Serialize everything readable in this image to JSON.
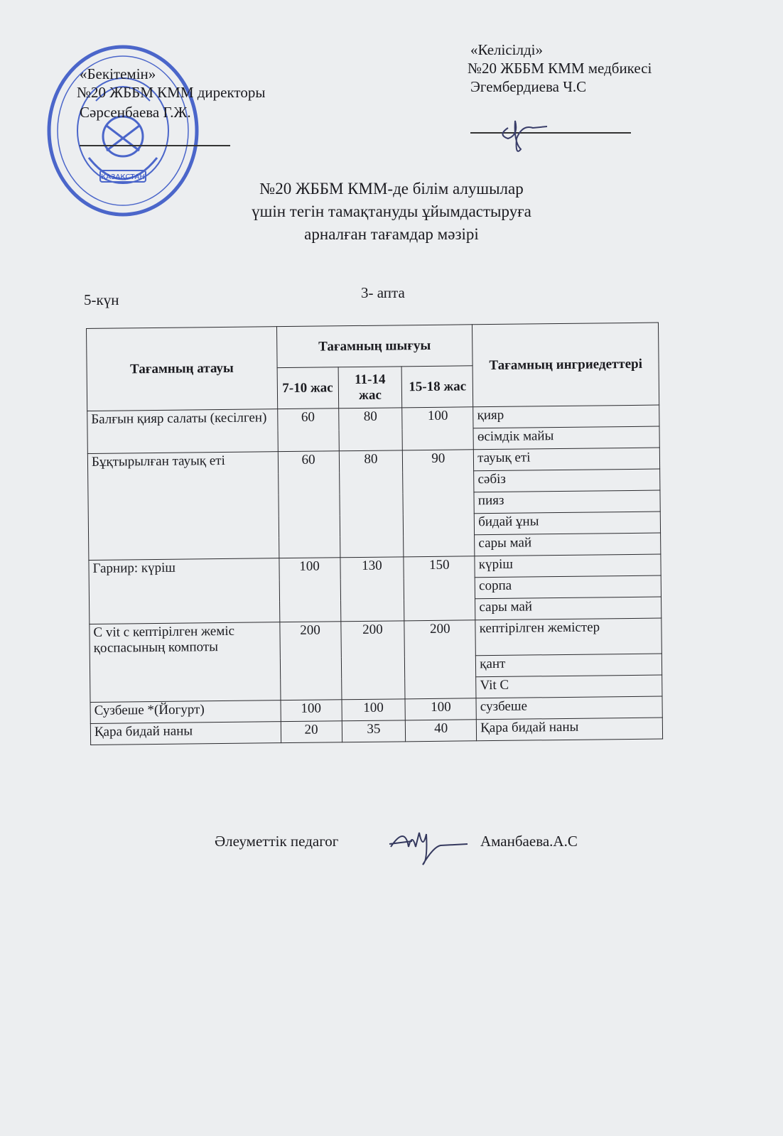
{
  "approval": {
    "label": "«Бекітемін»",
    "position": "№20 ЖББМ КММ директоры",
    "name": "Сәрсенбаева Г.Ж."
  },
  "agreement": {
    "label": "«Келісілді»",
    "position": "№20 ЖББМ КММ медбикесі",
    "name": "Эгембердиева Ч.С"
  },
  "stamp": {
    "text": "№20 жалпы білім беретін мектеп",
    "emblem": "ҚАЗАҚСТАН",
    "color": "#2f4fc4"
  },
  "title": {
    "line1": "№20 ЖББМ КММ-де білім алушылар",
    "line2": "үшін тегін тамақтануды ұйымдастыруға",
    "line3": "арналған тағамдар мәзірі"
  },
  "day": "5-күн",
  "week": "3- апта",
  "table": {
    "headers": {
      "name": "Тағамның атауы",
      "output": "Тағамның шығуы",
      "ingredients": "Тағамның ингриедеттері",
      "ages": [
        "7-10 жас",
        "11-14 жас",
        "15-18 жас"
      ]
    },
    "rows": [
      {
        "name": "Балғын  қияр салаты (кесілген)",
        "values": [
          "60",
          "80",
          "100"
        ],
        "ingredients": [
          "қияр",
          "өсімдік майы"
        ]
      },
      {
        "name": "Бұқтырылған тауық еті",
        "values": [
          "60",
          "80",
          "90"
        ],
        "ingredients": [
          "тауық еті",
          "сәбіз",
          "пияз",
          "бидай ұны",
          "сары май"
        ]
      },
      {
        "name": "Гарнир: күріш",
        "values": [
          "100",
          "130",
          "150"
        ],
        "ingredients": [
          "күріш",
          "сорпа",
          "сары май"
        ]
      },
      {
        "name": "C vit c кептірілген жеміс қоспасының компоты",
        "values": [
          "200",
          "200",
          "200"
        ],
        "ingredients": [
          "кептірілген жемістер",
          "қант",
          "Vit C"
        ]
      },
      {
        "name": "Сузбеше *(Йогурт)",
        "values": [
          "100",
          "100",
          "100"
        ],
        "ingredients": [
          "сузбеше"
        ]
      },
      {
        "name": "Қара бидай наны",
        "values": [
          "20",
          "35",
          "40"
        ],
        "ingredients": [
          "Қара бидай наны"
        ]
      }
    ]
  },
  "footer": {
    "role": "Әлеуметтік педагог",
    "name": "Аманбаева.А.С"
  }
}
